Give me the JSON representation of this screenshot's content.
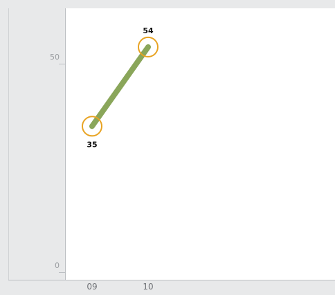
{
  "chart_data": {
    "type": "line",
    "categories": [
      "09",
      "10"
    ],
    "series": [
      {
        "values": [
          35,
          54
        ]
      }
    ],
    "y_ticks": [
      "0",
      "50"
    ],
    "ylim": [
      0,
      60
    ],
    "grid": false,
    "title": "",
    "xlabel": "",
    "ylabel": ""
  },
  "colors": {
    "background": "#e8e9ea",
    "plot_area": "#ffffff",
    "line": "#8aa65a",
    "marker_ring": "#e8a322",
    "axis": "#bcbfc3",
    "tick_label": "#9a9da1",
    "x_label": "#6e7175",
    "data_label": "#111111"
  }
}
